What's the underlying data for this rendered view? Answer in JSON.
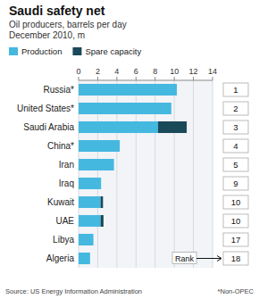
{
  "chart_data": {
    "type": "bar",
    "orientation": "horizontal",
    "stacked": true,
    "title": "Saudi safety net",
    "subtitle": [
      "Oil producers, barrels per day",
      "December 2010, m"
    ],
    "categories": [
      "Russia*",
      "United States*",
      "Saudi Arabia",
      "China*",
      "Iran",
      "Iraq",
      "Kuwait",
      "UAE",
      "Libya",
      "Algeria"
    ],
    "series": [
      {
        "name": "Production",
        "color": "#45b8e0",
        "values": [
          10.27,
          9.69,
          8.3,
          4.3,
          3.7,
          2.35,
          2.3,
          2.3,
          1.55,
          1.2
        ]
      },
      {
        "name": "Spare capacity",
        "color": "#1a4a5a",
        "values": [
          0,
          0,
          3.0,
          0,
          0,
          0,
          0.25,
          0.3,
          0,
          0
        ]
      }
    ],
    "xlim": [
      0,
      14
    ],
    "xticks": [
      0,
      2,
      4,
      6,
      8,
      10,
      12,
      14
    ],
    "grid": true,
    "legend": "top",
    "ranks": [
      1,
      2,
      3,
      4,
      5,
      9,
      10,
      10,
      17,
      18
    ],
    "annotation": "Rank",
    "source": "Source: US Energy Information Administration",
    "footnote": "*Non-OPEC"
  }
}
